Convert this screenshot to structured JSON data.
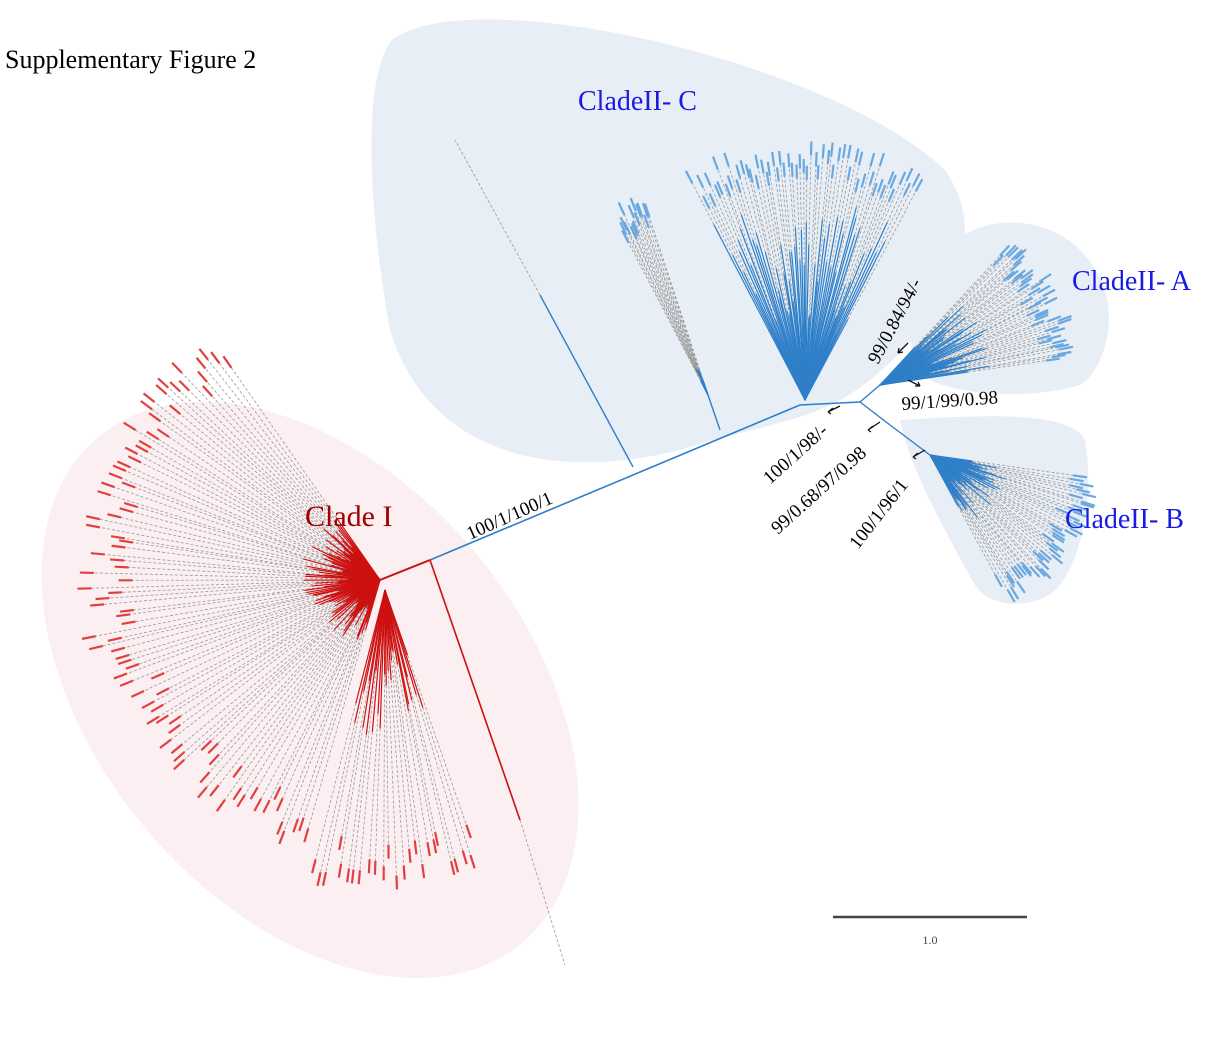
{
  "title": "Supplementary Figure 2",
  "clades": [
    {
      "label": "Clade I"
    },
    {
      "label": "CladeII- C"
    },
    {
      "label": "CladeII- A"
    },
    {
      "label": "CladeII- B"
    }
  ],
  "support_values": [
    "100/1/100/1",
    "99/0.84/94/-",
    "99/1/99/0.98",
    "100/1/98/-",
    "99/0.68/97/0.98",
    "100/1/96/1"
  ],
  "scale_bar": {
    "label": "1.0"
  }
}
